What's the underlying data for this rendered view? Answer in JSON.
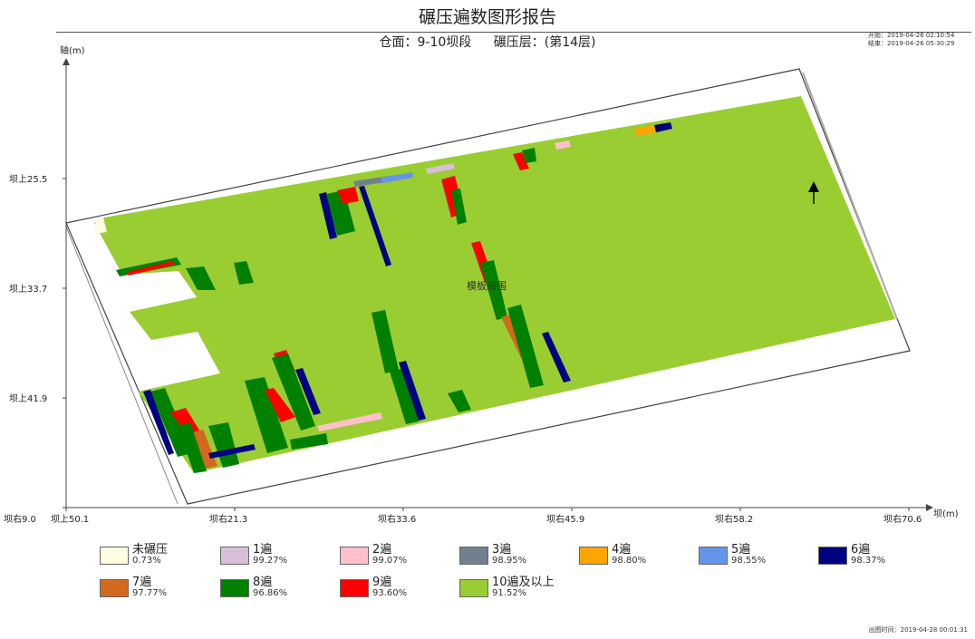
{
  "report": {
    "title": "碾压遍数图形报告",
    "subtitle_face": "仓面：9-10坝段",
    "subtitle_layer": "碾压层：(第14层)",
    "start_label": "开始：",
    "start_time": "2019-04-26 02:10:54",
    "end_label": "结束：",
    "end_time": "2019-04-26 05:30:29",
    "output_label": "出图时间：",
    "output_time": "2019-04-28 00:01:31",
    "region_label": "模板周围"
  },
  "chart_data": {
    "type": "heatmap",
    "title": "碾压遍数图形报告",
    "xlabel": "坝(m)",
    "ylabel": "轴(m)",
    "x_tick_labels": [
      "坝右9.0",
      "坝右21.3",
      "坝右33.6",
      "坝右45.9",
      "坝右58.2",
      "坝右70.6"
    ],
    "y_tick_labels": [
      "坝上25.5",
      "坝上33.7",
      "坝上41.9",
      "坝上50.1"
    ],
    "legend": [
      {
        "name": "未碾压",
        "pct": "0.73%",
        "color": "#fffde0"
      },
      {
        "name": "1遍",
        "pct": "99.27%",
        "color": "#d8bfd8"
      },
      {
        "name": "2遍",
        "pct": "99.07%",
        "color": "#ffc0cb"
      },
      {
        "name": "3遍",
        "pct": "98.95%",
        "color": "#708090"
      },
      {
        "name": "4遍",
        "pct": "98.80%",
        "color": "#ffa500"
      },
      {
        "name": "5遍",
        "pct": "98.55%",
        "color": "#6495ed"
      },
      {
        "name": "6遍",
        "pct": "98.37%",
        "color": "#000080"
      },
      {
        "name": "7遍",
        "pct": "97.77%",
        "color": "#d2691e"
      },
      {
        "name": "8遍",
        "pct": "96.86%",
        "color": "#008000"
      },
      {
        "name": "9遍",
        "pct": "93.60%",
        "color": "#ff0000"
      },
      {
        "name": "10遍及以上",
        "pct": "91.52%",
        "color": "#9acd32"
      }
    ]
  }
}
